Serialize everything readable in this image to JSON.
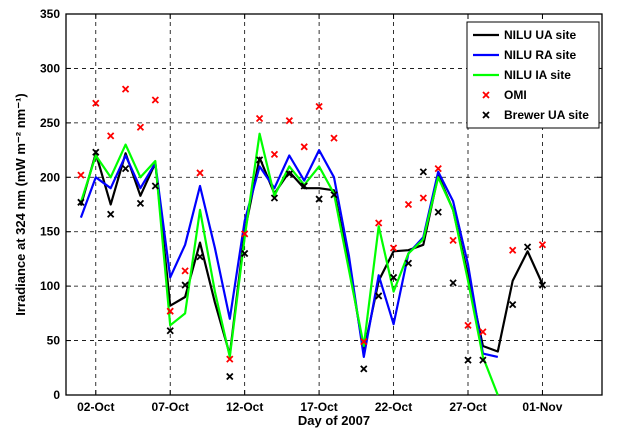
{
  "chart_data": {
    "type": "line",
    "xlabel": "Day of 2007",
    "ylabel": "Irradiance at 324 nm (mW m⁻² nm⁻¹)",
    "xlim": [
      -1,
      35
    ],
    "ylim": [
      0,
      350
    ],
    "x_ticks": [
      {
        "x": 1,
        "label": "02-Oct"
      },
      {
        "x": 6,
        "label": "07-Oct"
      },
      {
        "x": 11,
        "label": "12-Oct"
      },
      {
        "x": 16,
        "label": "17-Oct"
      },
      {
        "x": 21,
        "label": "22-Oct"
      },
      {
        "x": 26,
        "label": "27-Oct"
      },
      {
        "x": 31,
        "label": "01-Nov"
      }
    ],
    "y_ticks": [
      0,
      50,
      100,
      150,
      200,
      250,
      300,
      350
    ],
    "grid": true,
    "legend_position": "top-right",
    "series": [
      {
        "name": "NILU UA site",
        "style": "line",
        "color": "#000000",
        "points": [
          [
            0,
            174
          ],
          [
            1,
            222
          ],
          [
            2,
            175
          ],
          [
            3,
            222
          ],
          [
            4,
            183
          ],
          [
            5,
            213
          ],
          [
            6,
            82
          ],
          [
            7,
            90
          ],
          [
            8,
            140
          ],
          [
            9,
            85
          ],
          [
            10,
            37
          ],
          [
            11,
            150
          ],
          [
            12,
            218
          ],
          [
            13,
            185
          ],
          [
            14,
            205
          ],
          [
            15,
            190
          ],
          [
            16,
            190
          ],
          [
            17,
            188
          ],
          [
            18,
            120
          ],
          [
            19,
            40
          ],
          [
            20,
            105
          ],
          [
            21,
            132
          ],
          [
            22,
            133
          ],
          [
            23,
            138
          ],
          [
            24,
            202
          ],
          [
            25,
            170
          ],
          [
            26,
            110
          ],
          [
            27,
            45
          ],
          [
            28,
            40
          ],
          [
            29,
            105
          ],
          [
            30,
            132
          ],
          [
            31,
            102
          ]
        ]
      },
      {
        "name": "NILU RA site",
        "style": "line",
        "color": "#0000ff",
        "points": [
          [
            0,
            163
          ],
          [
            1,
            200
          ],
          [
            2,
            190
          ],
          [
            3,
            220
          ],
          [
            4,
            190
          ],
          [
            5,
            213
          ],
          [
            6,
            108
          ],
          [
            7,
            138
          ],
          [
            8,
            192
          ],
          [
            9,
            135
          ],
          [
            10,
            70
          ],
          [
            11,
            160
          ],
          [
            12,
            210
          ],
          [
            13,
            190
          ],
          [
            14,
            220
          ],
          [
            15,
            197
          ],
          [
            16,
            225
          ],
          [
            17,
            200
          ],
          [
            18,
            128
          ],
          [
            19,
            35
          ],
          [
            20,
            110
          ],
          [
            21,
            65
          ],
          [
            22,
            130
          ],
          [
            23,
            145
          ],
          [
            24,
            205
          ],
          [
            25,
            178
          ],
          [
            26,
            120
          ],
          [
            27,
            38
          ],
          [
            28,
            35
          ]
        ]
      },
      {
        "name": "NILU IA site",
        "style": "line",
        "color": "#00ff00",
        "points": [
          [
            0,
            177
          ],
          [
            1,
            220
          ],
          [
            2,
            200
          ],
          [
            3,
            230
          ],
          [
            4,
            200
          ],
          [
            5,
            215
          ],
          [
            6,
            64
          ],
          [
            7,
            75
          ],
          [
            8,
            170
          ],
          [
            9,
            95
          ],
          [
            10,
            35
          ],
          [
            11,
            145
          ],
          [
            12,
            240
          ],
          [
            13,
            183
          ],
          [
            14,
            210
          ],
          [
            15,
            193
          ],
          [
            16,
            210
          ],
          [
            17,
            185
          ],
          [
            18,
            115
          ],
          [
            19,
            45
          ],
          [
            20,
            155
          ],
          [
            21,
            95
          ],
          [
            22,
            130
          ],
          [
            23,
            143
          ],
          [
            24,
            200
          ],
          [
            25,
            170
          ],
          [
            26,
            105
          ],
          [
            27,
            35
          ],
          [
            28,
            0
          ]
        ]
      },
      {
        "name": "OMI",
        "style": "marker",
        "marker": "x",
        "color": "#ff0000",
        "points": [
          [
            0,
            202
          ],
          [
            1,
            268
          ],
          [
            2,
            238
          ],
          [
            3,
            281
          ],
          [
            4,
            246
          ],
          [
            5,
            271
          ],
          [
            6,
            77
          ],
          [
            7,
            114
          ],
          [
            8,
            204
          ],
          [
            10,
            33
          ],
          [
            11,
            148
          ],
          [
            12,
            254
          ],
          [
            13,
            221
          ],
          [
            14,
            252
          ],
          [
            15,
            228
          ],
          [
            16,
            265
          ],
          [
            17,
            236
          ],
          [
            19,
            49
          ],
          [
            20,
            158
          ],
          [
            21,
            135
          ],
          [
            22,
            175
          ],
          [
            23,
            181
          ],
          [
            24,
            208
          ],
          [
            25,
            142
          ],
          [
            26,
            64
          ],
          [
            27,
            58
          ],
          [
            29,
            133
          ],
          [
            31,
            138
          ]
        ]
      },
      {
        "name": "Brewer UA site",
        "style": "marker",
        "marker": "x",
        "color": "#000000",
        "points": [
          [
            0,
            177
          ],
          [
            1,
            223
          ],
          [
            2,
            166
          ],
          [
            3,
            208
          ],
          [
            4,
            176
          ],
          [
            5,
            192
          ],
          [
            6,
            59
          ],
          [
            7,
            101
          ],
          [
            8,
            127
          ],
          [
            10,
            17
          ],
          [
            11,
            130
          ],
          [
            12,
            216
          ],
          [
            13,
            181
          ],
          [
            14,
            203
          ],
          [
            15,
            192
          ],
          [
            16,
            180
          ],
          [
            17,
            184
          ],
          [
            19,
            24
          ],
          [
            20,
            91
          ],
          [
            21,
            108
          ],
          [
            22,
            121
          ],
          [
            23,
            205
          ],
          [
            24,
            168
          ],
          [
            25,
            103
          ],
          [
            26,
            32
          ],
          [
            27,
            32
          ],
          [
            29,
            83
          ],
          [
            30,
            136
          ],
          [
            31,
            101
          ]
        ]
      }
    ]
  }
}
